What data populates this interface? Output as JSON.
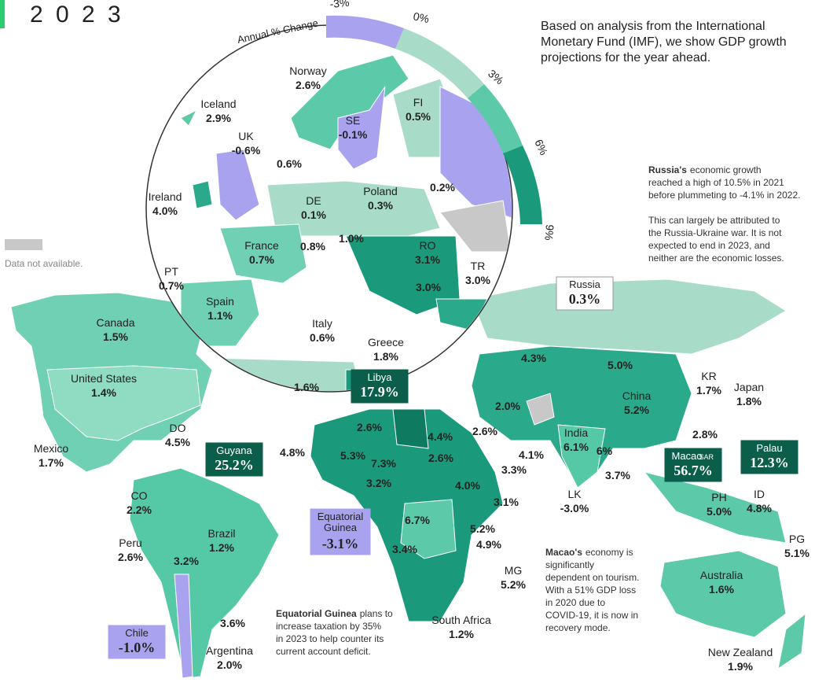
{
  "header": {
    "title": "2 0 2 3"
  },
  "intro": [
    "Based on analysis from the International",
    "Monetary Fund (IMF), we show GDP growth",
    "projections for the year ahead."
  ],
  "legend": {
    "no_data": "Data not available."
  },
  "scale": {
    "title": "Annual % Change",
    "ticks": [
      "-3%",
      "0%",
      "3%",
      "6%",
      "9%"
    ]
  },
  "notes": {
    "russia": {
      "bold": "Russia's",
      "lines": [
        "economic growth",
        "reached a high of 10.5% in 2021",
        "before plummeting to -4.1% in 2022.",
        "",
        "This can largely be attributed to",
        "the Russia-Ukraine war. It is not",
        "expected to end in 2023, and",
        "neither are the economic losses."
      ]
    },
    "macao": {
      "bold": "Macao's",
      "lines": [
        "economy is",
        "significantly",
        "dependent on tourism.",
        "With a 51% GDP loss",
        "in 2020 due to",
        "COVID-19, it is now in",
        "recovery mode."
      ]
    },
    "eq_guinea": {
      "bold": "Equatorial Guinea",
      "lines": [
        "plans to",
        "increase taxation by 35%",
        "in 2023 to help counter its",
        "current account deficit."
      ]
    }
  },
  "labels": [
    {
      "name": "Norway",
      "value": "2.6%"
    },
    {
      "name": "Iceland",
      "value": "2.9%"
    },
    {
      "name": "UK",
      "value": "-0.6%"
    },
    {
      "name": "SE",
      "value": "-0.1%"
    },
    {
      "name": "FI",
      "value": "0.5%"
    },
    {
      "name": "Ireland",
      "value": "4.0%"
    },
    {
      "value": "0.6%"
    },
    {
      "value": "0.2%"
    },
    {
      "name": "DE",
      "value": "0.1%"
    },
    {
      "name": "Poland",
      "value": "0.3%"
    },
    {
      "name": "France",
      "value": "0.7%"
    },
    {
      "value": "0.8%"
    },
    {
      "value": "1.0%"
    },
    {
      "name": "RO",
      "value": "3.1%"
    },
    {
      "value": "3.0%"
    },
    {
      "name": "TR",
      "value": "3.0%"
    },
    {
      "name": "PT",
      "value": "0.7%"
    },
    {
      "name": "Spain",
      "value": "1.1%"
    },
    {
      "name": "Italy",
      "value": "0.6%"
    },
    {
      "name": "Greece",
      "value": "1.8%"
    },
    {
      "value": "1.6%"
    },
    {
      "name": "Canada",
      "value": "1.5%"
    },
    {
      "name": "United States",
      "value": "1.4%"
    },
    {
      "name": "Mexico",
      "value": "1.7%"
    },
    {
      "name": "DO",
      "value": "4.5%"
    },
    {
      "name": "CO",
      "value": "2.2%"
    },
    {
      "name": "Peru",
      "value": "2.6%"
    },
    {
      "name": "Brazil",
      "value": "1.2%"
    },
    {
      "value": "3.2%"
    },
    {
      "value": "3.6%"
    },
    {
      "name": "Argentina",
      "value": "2.0%"
    },
    {
      "value": "2.6%"
    },
    {
      "value": "4.4%"
    },
    {
      "value": "4.8%"
    },
    {
      "value": "5.3%"
    },
    {
      "value": "7.3%"
    },
    {
      "value": "2.6%"
    },
    {
      "value": "3.2%"
    },
    {
      "value": "4.0%"
    },
    {
      "value": "6.7%"
    },
    {
      "value": "3.4%"
    },
    {
      "value": "3.1%"
    },
    {
      "value": "5.2%"
    },
    {
      "value": "4.9%"
    },
    {
      "name": "MG",
      "value": "5.2%"
    },
    {
      "name": "South Africa",
      "value": "1.2%"
    },
    {
      "value": "4.3%"
    },
    {
      "value": "5.0%"
    },
    {
      "name": "KR",
      "value": "1.7%"
    },
    {
      "name": "Japan",
      "value": "1.8%"
    },
    {
      "name": "China",
      "value": "5.2%"
    },
    {
      "value": "2.0%"
    },
    {
      "value": "2.6%"
    },
    {
      "name": "India",
      "value": "6.1%"
    },
    {
      "value": "6%"
    },
    {
      "value": "2.8%"
    },
    {
      "value": "4.1%"
    },
    {
      "value": "3.3%"
    },
    {
      "value": "3.7%"
    },
    {
      "name": "LK",
      "value": "-3.0%"
    },
    {
      "name": "PH",
      "value": "5.0%"
    },
    {
      "name": "ID",
      "value": "4.8%"
    },
    {
      "name": "PG",
      "value": "5.1%"
    },
    {
      "name": "Australia",
      "value": "1.6%"
    },
    {
      "name": "New Zealand",
      "value": "1.9%"
    }
  ],
  "callouts": [
    {
      "name": "Guyana",
      "value": "25.2%"
    },
    {
      "name": "Libya",
      "value": "17.9%"
    },
    {
      "name": "Equatorial Guinea",
      "value": "-3.1%"
    },
    {
      "name": "Russia",
      "value": "0.3%"
    },
    {
      "name": "Macao",
      "suffix": "SAR",
      "value": "56.7%"
    },
    {
      "name": "Palau",
      "value": "12.3%"
    },
    {
      "name": "Chile",
      "value": "-1.0%"
    }
  ]
}
